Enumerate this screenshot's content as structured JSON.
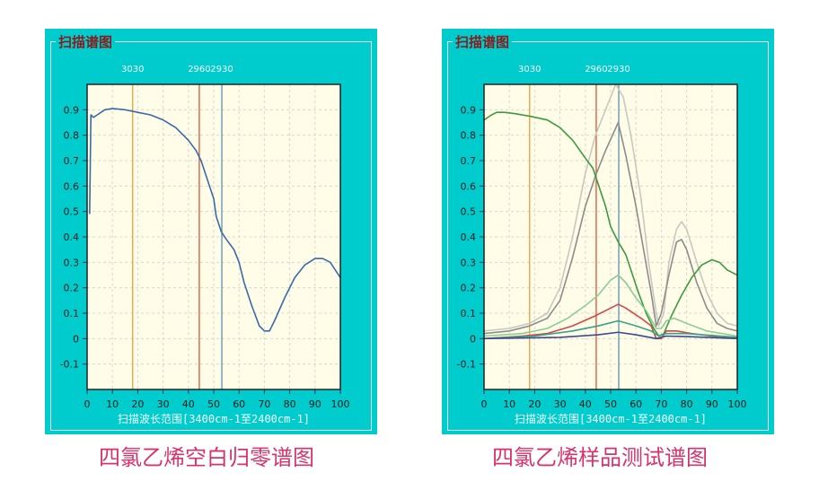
{
  "panels": [
    {
      "title": "扫描谱图",
      "caption": "四氯乙烯空白归零谱图"
    },
    {
      "title": "扫描谱图",
      "caption": "四氯乙烯样品测试谱图"
    }
  ],
  "chart_data": [
    {
      "type": "line",
      "title": "扫描谱图",
      "xlabel": "扫描波长范围[3400cm-1至2400cm-1]",
      "xlim": [
        0,
        100
      ],
      "ylim": [
        -0.2,
        1.0
      ],
      "xticks": [
        0,
        10,
        20,
        30,
        40,
        50,
        60,
        70,
        80,
        90,
        100
      ],
      "yticks": [
        -0.1,
        0,
        0.1,
        0.2,
        0.3,
        0.4,
        0.5,
        0.6,
        0.7,
        0.8,
        0.9
      ],
      "grid": true,
      "markers": [
        {
          "label": "3030",
          "x": 18,
          "color": "#e8962e"
        },
        {
          "label": "2960",
          "x": 44.3,
          "color": "#d0482a"
        },
        {
          "label": "2930",
          "x": 53.2,
          "color": "#4a8aa8"
        }
      ],
      "series": [
        {
          "color": "#3a6aa8",
          "points": [
            [
              1,
              0.49
            ],
            [
              1.5,
              0.88
            ],
            [
              2.5,
              0.87
            ],
            [
              4,
              0.88
            ],
            [
              7,
              0.9
            ],
            [
              10,
              0.905
            ],
            [
              15,
              0.9
            ],
            [
              20,
              0.89
            ],
            [
              25,
              0.88
            ],
            [
              30,
              0.86
            ],
            [
              35,
              0.83
            ],
            [
              40,
              0.78
            ],
            [
              43,
              0.74
            ],
            [
              45,
              0.7
            ],
            [
              47,
              0.64
            ],
            [
              50,
              0.55
            ],
            [
              51,
              0.48
            ],
            [
              53,
              0.42
            ],
            [
              55,
              0.39
            ],
            [
              58,
              0.35
            ],
            [
              60,
              0.3
            ],
            [
              62,
              0.22
            ],
            [
              65,
              0.13
            ],
            [
              68,
              0.05
            ],
            [
              70,
              0.03
            ],
            [
              72,
              0.03
            ],
            [
              74,
              0.07
            ],
            [
              78,
              0.16
            ],
            [
              82,
              0.24
            ],
            [
              86,
              0.29
            ],
            [
              90,
              0.315
            ],
            [
              93,
              0.315
            ],
            [
              96,
              0.3
            ],
            [
              98,
              0.27
            ],
            [
              100,
              0.24
            ]
          ]
        }
      ]
    },
    {
      "type": "line",
      "title": "扫描谱图",
      "xlabel": "扫描波长范围[3400cm-1至2400cm-1]",
      "xlim": [
        0,
        100
      ],
      "ylim": [
        -0.2,
        1.0
      ],
      "xticks": [
        0,
        10,
        20,
        30,
        40,
        50,
        60,
        70,
        80,
        90,
        100
      ],
      "yticks": [
        -0.1,
        0,
        0.1,
        0.2,
        0.3,
        0.4,
        0.5,
        0.6,
        0.7,
        0.8,
        0.9
      ],
      "grid": true,
      "markers": [
        {
          "label": "3030",
          "x": 18,
          "color": "#e8962e"
        },
        {
          "label": "2960",
          "x": 44.3,
          "color": "#d0482a"
        },
        {
          "label": "2930",
          "x": 53.2,
          "color": "#4a8aa8"
        }
      ],
      "series": [
        {
          "color": "#c8c8c0",
          "points": [
            [
              0,
              0.03
            ],
            [
              10,
              0.04
            ],
            [
              18,
              0.06
            ],
            [
              25,
              0.1
            ],
            [
              30,
              0.2
            ],
            [
              35,
              0.4
            ],
            [
              40,
              0.65
            ],
            [
              44,
              0.8
            ],
            [
              48,
              0.9
            ],
            [
              52,
              1.0
            ],
            [
              55,
              0.95
            ],
            [
              58,
              0.8
            ],
            [
              62,
              0.55
            ],
            [
              65,
              0.3
            ],
            [
              68,
              0.1
            ],
            [
              69,
              0.05
            ],
            [
              71,
              0.1
            ],
            [
              73,
              0.3
            ],
            [
              76,
              0.43
            ],
            [
              78,
              0.46
            ],
            [
              80,
              0.43
            ],
            [
              84,
              0.3
            ],
            [
              88,
              0.18
            ],
            [
              92,
              0.1
            ],
            [
              96,
              0.06
            ],
            [
              100,
              0.05
            ]
          ]
        },
        {
          "color": "#8c8c8c",
          "points": [
            [
              0,
              0.02
            ],
            [
              10,
              0.03
            ],
            [
              18,
              0.05
            ],
            [
              25,
              0.08
            ],
            [
              30,
              0.15
            ],
            [
              35,
              0.32
            ],
            [
              40,
              0.52
            ],
            [
              44,
              0.64
            ],
            [
              48,
              0.74
            ],
            [
              53,
              0.85
            ],
            [
              56,
              0.72
            ],
            [
              60,
              0.52
            ],
            [
              63,
              0.35
            ],
            [
              66,
              0.18
            ],
            [
              68,
              0.05
            ],
            [
              70,
              0.1
            ],
            [
              73,
              0.25
            ],
            [
              76,
              0.38
            ],
            [
              78,
              0.39
            ],
            [
              80,
              0.35
            ],
            [
              84,
              0.22
            ],
            [
              88,
              0.12
            ],
            [
              92,
              0.06
            ],
            [
              96,
              0.04
            ],
            [
              100,
              0.03
            ]
          ]
        },
        {
          "color": "#3d9a3d",
          "points": [
            [
              0,
              0.86
            ],
            [
              3,
              0.88
            ],
            [
              5,
              0.89
            ],
            [
              8,
              0.89
            ],
            [
              12,
              0.885
            ],
            [
              18,
              0.875
            ],
            [
              25,
              0.86
            ],
            [
              30,
              0.83
            ],
            [
              35,
              0.78
            ],
            [
              40,
              0.71
            ],
            [
              43,
              0.67
            ],
            [
              45,
              0.61
            ],
            [
              48,
              0.52
            ],
            [
              50,
              0.44
            ],
            [
              53,
              0.38
            ],
            [
              56,
              0.33
            ],
            [
              58,
              0.27
            ],
            [
              61,
              0.18
            ],
            [
              64,
              0.1
            ],
            [
              67,
              0.04
            ],
            [
              69,
              0.01
            ],
            [
              71,
              0.02
            ],
            [
              74,
              0.09
            ],
            [
              78,
              0.17
            ],
            [
              82,
              0.24
            ],
            [
              86,
              0.29
            ],
            [
              90,
              0.31
            ],
            [
              93,
              0.3
            ],
            [
              96,
              0.27
            ],
            [
              100,
              0.25
            ]
          ]
        },
        {
          "color": "#8ccc96",
          "points": [
            [
              0,
              0.01
            ],
            [
              15,
              0.02
            ],
            [
              25,
              0.04
            ],
            [
              33,
              0.08
            ],
            [
              40,
              0.13
            ],
            [
              45,
              0.17
            ],
            [
              50,
              0.23
            ],
            [
              53,
              0.25
            ],
            [
              56,
              0.22
            ],
            [
              60,
              0.16
            ],
            [
              64,
              0.11
            ],
            [
              68,
              0.04
            ],
            [
              70,
              0.04
            ],
            [
              72,
              0.07
            ],
            [
              75,
              0.08
            ],
            [
              80,
              0.06
            ],
            [
              88,
              0.03
            ],
            [
              100,
              0.01
            ]
          ]
        },
        {
          "color": "#d04848",
          "points": [
            [
              0,
              0
            ],
            [
              15,
              0.01
            ],
            [
              25,
              0.02
            ],
            [
              35,
              0.05
            ],
            [
              44,
              0.09
            ],
            [
              50,
              0.12
            ],
            [
              53,
              0.135
            ],
            [
              56,
              0.12
            ],
            [
              62,
              0.08
            ],
            [
              66,
              0.05
            ],
            [
              68,
              0
            ],
            [
              70,
              0
            ],
            [
              72,
              0.03
            ],
            [
              76,
              0.03
            ],
            [
              82,
              0.02
            ],
            [
              90,
              0.01
            ],
            [
              100,
              0.005
            ]
          ]
        },
        {
          "color": "#3aa08a",
          "points": [
            [
              0,
              0
            ],
            [
              20,
              0.01
            ],
            [
              35,
              0.03
            ],
            [
              45,
              0.05
            ],
            [
              53,
              0.07
            ],
            [
              60,
              0.05
            ],
            [
              66,
              0.03
            ],
            [
              69,
              0.01
            ],
            [
              72,
              0.02
            ],
            [
              80,
              0.02
            ],
            [
              100,
              0.005
            ]
          ]
        },
        {
          "color": "#3a4a8a",
          "points": [
            [
              0,
              0
            ],
            [
              30,
              0.005
            ],
            [
              45,
              0.015
            ],
            [
              53,
              0.025
            ],
            [
              60,
              0.015
            ],
            [
              68,
              0
            ],
            [
              72,
              0.01
            ],
            [
              80,
              0.008
            ],
            [
              100,
              0
            ]
          ]
        }
      ]
    }
  ]
}
